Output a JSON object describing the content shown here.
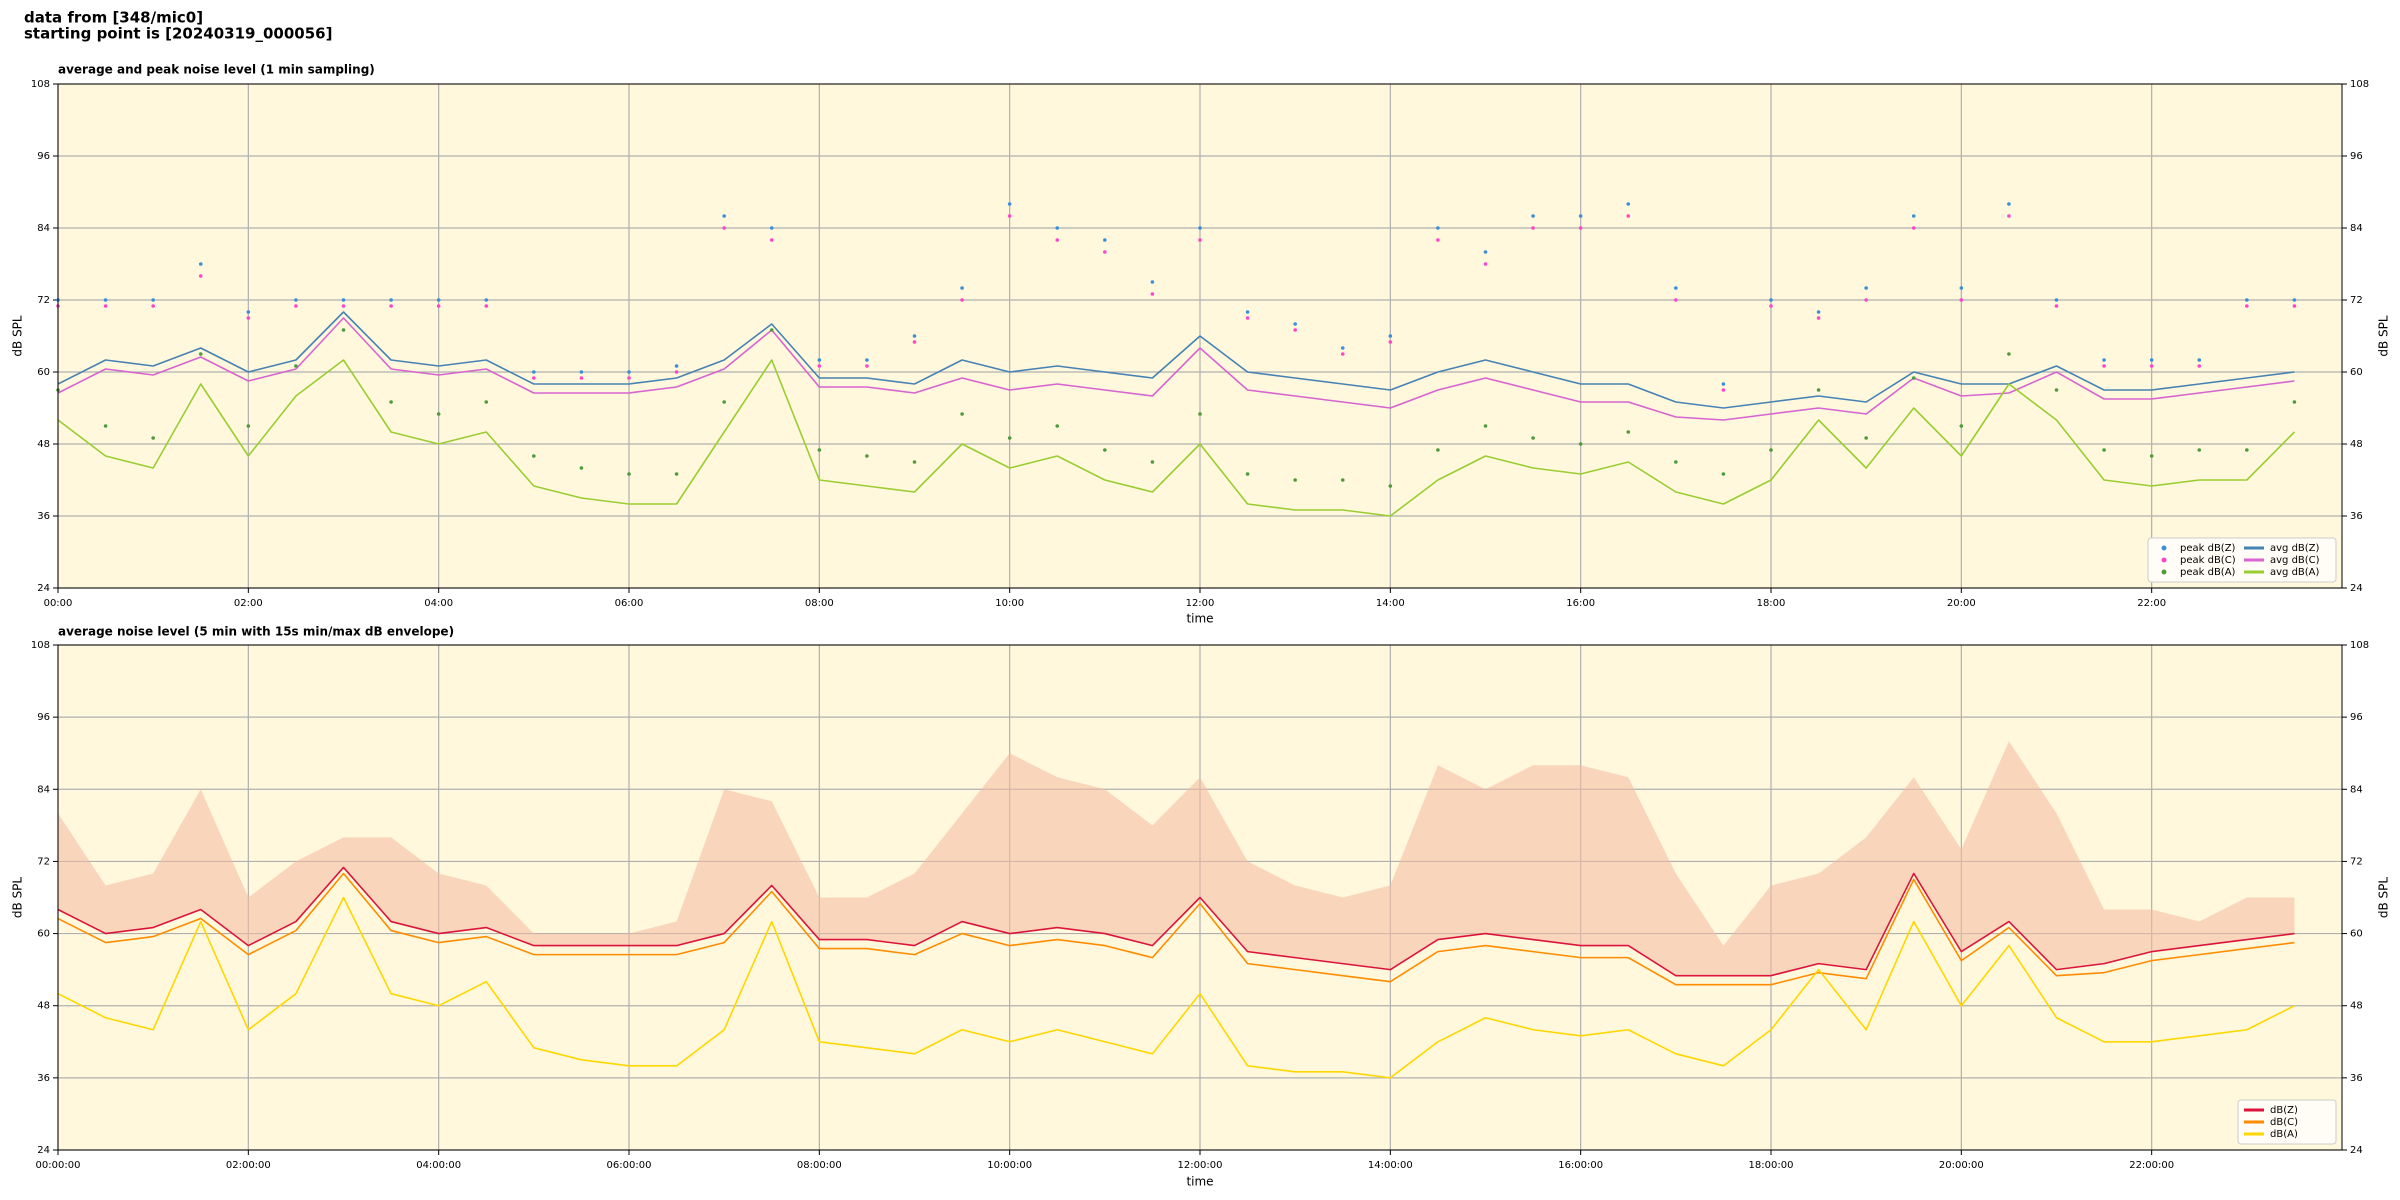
{
  "header": [
    "data from [348/mic0]",
    "starting point is [20240319_000056]"
  ],
  "chart_data": [
    {
      "type": "line",
      "title": "average and peak noise level (1 min sampling)",
      "x_label": "time",
      "y_label": "dB SPL",
      "background": "#fff8dc",
      "grid": true,
      "legend": "lower right",
      "xlim": [
        "00:00",
        "24:00"
      ],
      "xticks": [
        "00:00",
        "02:00",
        "04:00",
        "06:00",
        "08:00",
        "10:00",
        "12:00",
        "14:00",
        "16:00",
        "18:00",
        "20:00",
        "22:00"
      ],
      "ylim": [
        24,
        108
      ],
      "yticks": [
        24,
        36,
        48,
        60,
        72,
        84,
        96,
        108
      ],
      "x": [
        "00:00",
        "00:30",
        "01:00",
        "01:30",
        "02:00",
        "02:30",
        "03:00",
        "03:30",
        "04:00",
        "04:30",
        "05:00",
        "05:30",
        "06:00",
        "06:30",
        "07:00",
        "07:30",
        "08:00",
        "08:30",
        "09:00",
        "09:30",
        "10:00",
        "10:30",
        "11:00",
        "11:30",
        "12:00",
        "12:30",
        "13:00",
        "13:30",
        "14:00",
        "14:30",
        "15:00",
        "15:30",
        "16:00",
        "16:30",
        "17:00",
        "17:30",
        "18:00",
        "18:30",
        "19:00",
        "19:30",
        "20:00",
        "20:30",
        "21:00",
        "21:30",
        "22:00",
        "22:30",
        "23:00",
        "23:30"
      ],
      "series": [
        {
          "name": "peak dB(Z)",
          "type": "scatter",
          "color": "#3a8fd8",
          "values": [
            72,
            72,
            72,
            78,
            70,
            72,
            72,
            72,
            72,
            72,
            60,
            60,
            60,
            61,
            86,
            84,
            62,
            62,
            66,
            74,
            88,
            84,
            82,
            75,
            84,
            70,
            68,
            64,
            66,
            84,
            80,
            86,
            86,
            88,
            74,
            58,
            72,
            70,
            74,
            86,
            74,
            88,
            72,
            62,
            62,
            62,
            72,
            72
          ]
        },
        {
          "name": "peak dB(C)",
          "type": "scatter",
          "color": "#ff44cc",
          "values": [
            71,
            71,
            71,
            76,
            69,
            71,
            71,
            71,
            71,
            71,
            59,
            59,
            59,
            60,
            84,
            82,
            61,
            61,
            65,
            72,
            86,
            82,
            80,
            73,
            82,
            69,
            67,
            63,
            65,
            82,
            78,
            84,
            84,
            86,
            72,
            57,
            71,
            69,
            72,
            84,
            72,
            86,
            71,
            61,
            61,
            61,
            71,
            71
          ]
        },
        {
          "name": "peak dB(A)",
          "type": "scatter",
          "color": "#4f9a3a",
          "values": [
            57,
            51,
            49,
            63,
            51,
            61,
            67,
            55,
            53,
            55,
            46,
            44,
            43,
            43,
            55,
            67,
            47,
            46,
            45,
            53,
            49,
            51,
            47,
            45,
            53,
            43,
            42,
            42,
            41,
            47,
            51,
            49,
            48,
            50,
            45,
            43,
            47,
            57,
            49,
            59,
            51,
            63,
            57,
            47,
            46,
            47,
            47,
            55
          ]
        },
        {
          "name": "avg dB(Z)",
          "type": "line",
          "color": "#4682b4",
          "values": [
            58,
            62,
            61,
            64,
            60,
            62,
            70,
            62,
            61,
            62,
            58,
            58,
            58,
            59,
            62,
            68,
            59,
            59,
            58,
            62,
            60,
            61,
            60,
            59,
            66,
            60,
            59,
            58,
            57,
            60,
            62,
            60,
            58,
            58,
            55,
            54,
            55,
            56,
            55,
            60,
            58,
            58,
            61,
            57,
            57,
            58,
            59,
            60
          ]
        },
        {
          "name": "avg dB(C)",
          "type": "line",
          "color": "#d764d0",
          "values": [
            56.5,
            60.5,
            59.5,
            62.5,
            58.5,
            60.5,
            69,
            60.5,
            59.5,
            60.5,
            56.5,
            56.5,
            56.5,
            57.5,
            60.5,
            67,
            57.5,
            57.5,
            56.5,
            59,
            57,
            58,
            57,
            56,
            64,
            57,
            56,
            55,
            54,
            57,
            59,
            57,
            55,
            55,
            52.5,
            52,
            53,
            54,
            53,
            59,
            56,
            56.5,
            60,
            55.5,
            55.5,
            56.5,
            57.5,
            58.5
          ]
        },
        {
          "name": "avg dB(A)",
          "type": "line",
          "color": "#9acd32",
          "values": [
            52,
            46,
            44,
            58,
            46,
            56,
            62,
            50,
            48,
            50,
            41,
            39,
            38,
            38,
            50,
            62,
            42,
            41,
            40,
            48,
            44,
            46,
            42,
            40,
            48,
            38,
            37,
            37,
            36,
            42,
            46,
            44,
            43,
            45,
            40,
            38,
            42,
            52,
            44,
            54,
            46,
            58,
            52,
            42,
            41,
            42,
            42,
            50
          ]
        }
      ]
    },
    {
      "type": "line",
      "title": "average noise level (5 min with 15s min/max dB envelope)",
      "x_label": "time",
      "y_label": "dB SPL",
      "background": "#fff8dc",
      "grid": true,
      "legend": "lower right",
      "xlim": [
        "00:00:00",
        "24:00:00"
      ],
      "xticks": [
        "00:00:00",
        "02:00:00",
        "04:00:00",
        "06:00:00",
        "08:00:00",
        "10:00:00",
        "12:00:00",
        "14:00:00",
        "16:00:00",
        "18:00:00",
        "20:00:00",
        "22:00:00"
      ],
      "ylim": [
        24,
        108
      ],
      "yticks": [
        24,
        36,
        48,
        60,
        72,
        84,
        96,
        108
      ],
      "x": [
        "00:00:00",
        "00:30:00",
        "01:00:00",
        "01:30:00",
        "02:00:00",
        "02:30:00",
        "03:00:00",
        "03:30:00",
        "04:00:00",
        "04:30:00",
        "05:00:00",
        "05:30:00",
        "06:00:00",
        "06:30:00",
        "07:00:00",
        "07:30:00",
        "08:00:00",
        "08:30:00",
        "09:00:00",
        "09:30:00",
        "10:00:00",
        "10:30:00",
        "11:00:00",
        "11:30:00",
        "12:00:00",
        "12:30:00",
        "13:00:00",
        "13:30:00",
        "14:00:00",
        "14:30:00",
        "15:00:00",
        "15:30:00",
        "16:00:00",
        "16:30:00",
        "17:00:00",
        "17:30:00",
        "18:00:00",
        "18:30:00",
        "19:00:00",
        "19:30:00",
        "20:00:00",
        "20:30:00",
        "21:00:00",
        "21:30:00",
        "22:00:00",
        "22:30:00",
        "23:00:00",
        "23:30:00"
      ],
      "envelope": {
        "color": "#f4b9a0",
        "values": [
          80,
          68,
          70,
          84,
          66,
          72,
          76,
          76,
          70,
          68,
          60,
          60,
          60,
          62,
          84,
          82,
          66,
          66,
          70,
          80,
          90,
          86,
          84,
          78,
          86,
          72,
          68,
          66,
          68,
          88,
          84,
          88,
          88,
          86,
          70,
          58,
          68,
          70,
          76,
          86,
          74,
          92,
          80,
          64,
          64,
          62,
          66,
          66
        ]
      },
      "series": [
        {
          "name": "dB(Z)",
          "type": "line",
          "color": "#dc143c",
          "values": [
            64,
            60,
            61,
            64,
            58,
            62,
            71,
            62,
            60,
            61,
            58,
            58,
            58,
            58,
            60,
            68,
            59,
            59,
            58,
            62,
            60,
            61,
            60,
            58,
            66,
            57,
            56,
            55,
            54,
            59,
            60,
            59,
            58,
            58,
            53,
            53,
            53,
            55,
            54,
            70,
            57,
            62,
            54,
            55,
            57,
            58,
            59,
            60
          ]
        },
        {
          "name": "dB(C)",
          "type": "line",
          "color": "#ff8c00",
          "values": [
            62.5,
            58.5,
            59.5,
            62.5,
            56.5,
            60.5,
            70,
            60.5,
            58.5,
            59.5,
            56.5,
            56.5,
            56.5,
            56.5,
            58.5,
            67,
            57.5,
            57.5,
            56.5,
            60,
            58,
            59,
            58,
            56,
            65,
            55,
            54,
            53,
            52,
            57,
            58,
            57,
            56,
            56,
            51.5,
            51.5,
            51.5,
            53.5,
            52.5,
            69,
            55.5,
            61,
            53,
            53.5,
            55.5,
            56.5,
            57.5,
            58.5
          ]
        },
        {
          "name": "dB(A)",
          "type": "line",
          "color": "#ffd700",
          "values": [
            50,
            46,
            44,
            62,
            44,
            50,
            66,
            50,
            48,
            52,
            41,
            39,
            38,
            38,
            44,
            62,
            42,
            41,
            40,
            44,
            42,
            44,
            42,
            40,
            50,
            38,
            37,
            37,
            36,
            42,
            46,
            44,
            43,
            44,
            40,
            38,
            44,
            54,
            44,
            62,
            48,
            58,
            46,
            42,
            42,
            43,
            44,
            48
          ]
        }
      ]
    }
  ]
}
